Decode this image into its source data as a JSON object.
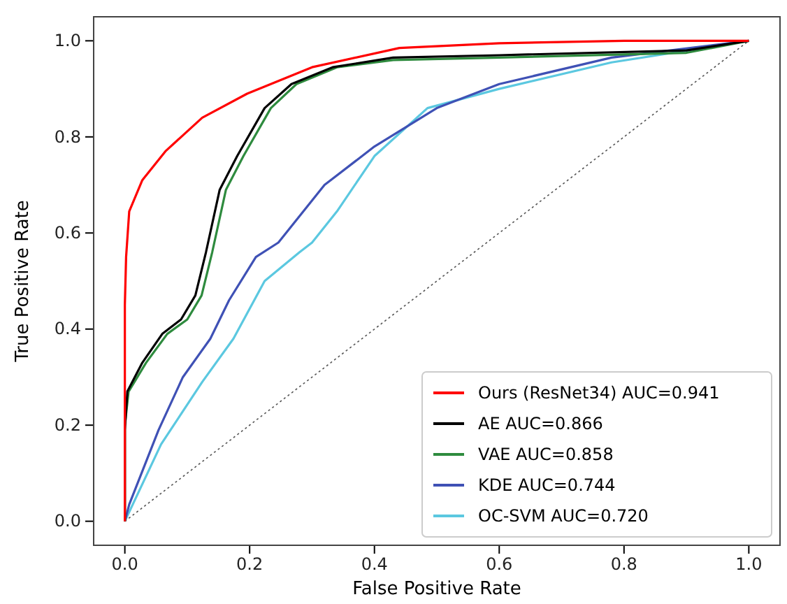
{
  "chart_data": {
    "type": "line",
    "xlabel": "False Positive Rate",
    "ylabel": "True Positive Rate",
    "xlim": [
      -0.05,
      1.05
    ],
    "ylim": [
      -0.05,
      1.05
    ],
    "xticks": [
      {
        "value": 0,
        "label": "0.0"
      },
      {
        "value": 0.2,
        "label": "0.2"
      },
      {
        "value": 0.4,
        "label": "0.4"
      },
      {
        "value": 0.6,
        "label": "0.6"
      },
      {
        "value": 0.8,
        "label": "0.8"
      },
      {
        "value": 1,
        "label": "1.0"
      }
    ],
    "yticks": [
      {
        "value": 0,
        "label": "0.0"
      },
      {
        "value": 0.2,
        "label": "0.2"
      },
      {
        "value": 0.4,
        "label": "0.4"
      },
      {
        "value": 0.6,
        "label": "0.6"
      },
      {
        "value": 0.8,
        "label": "0.8"
      },
      {
        "value": 1,
        "label": "1.0"
      }
    ],
    "grid": false,
    "legend": "bottom right",
    "marker": "none",
    "series": [
      {
        "name": "Ours (ResNet34) AUC=0.941",
        "color": "#ff0000",
        "x": [
          0,
          0,
          0.002,
          0.007,
          0.028,
          0.065,
          0.124,
          0.196,
          0.3,
          0.44,
          0.6,
          0.8,
          1
        ],
        "values": [
          0,
          0.45,
          0.55,
          0.645,
          0.71,
          0.77,
          0.84,
          0.89,
          0.945,
          0.985,
          0.995,
          1,
          1
        ]
      },
      {
        "name": "AE AUC=0.866",
        "color": "#000000",
        "x": [
          0,
          0,
          0.004,
          0.028,
          0.06,
          0.09,
          0.113,
          0.13,
          0.152,
          0.18,
          0.224,
          0.267,
          0.333,
          0.43,
          0.6,
          0.9,
          1
        ],
        "values": [
          0,
          0.19,
          0.27,
          0.33,
          0.39,
          0.42,
          0.47,
          0.56,
          0.69,
          0.76,
          0.86,
          0.91,
          0.945,
          0.965,
          0.97,
          0.98,
          1
        ]
      },
      {
        "name": "VAE AUC=0.858",
        "color": "#2e8b3e",
        "x": [
          0,
          0,
          0.006,
          0.034,
          0.068,
          0.1,
          0.123,
          0.14,
          0.162,
          0.19,
          0.234,
          0.275,
          0.34,
          0.43,
          0.6,
          0.9,
          1
        ],
        "values": [
          0,
          0.2,
          0.27,
          0.33,
          0.39,
          0.42,
          0.47,
          0.56,
          0.69,
          0.76,
          0.86,
          0.91,
          0.945,
          0.96,
          0.965,
          0.975,
          1
        ]
      },
      {
        "name": "KDE AUC=0.744",
        "color": "#3f51b5",
        "x": [
          0,
          0.007,
          0.054,
          0.093,
          0.137,
          0.167,
          0.21,
          0.246,
          0.32,
          0.4,
          0.5,
          0.6,
          0.78,
          1
        ],
        "values": [
          0,
          0.035,
          0.19,
          0.3,
          0.38,
          0.46,
          0.55,
          0.58,
          0.7,
          0.78,
          0.86,
          0.91,
          0.965,
          1
        ]
      },
      {
        "name": "OC-SVM AUC=0.720",
        "color": "#5bc8e0",
        "x": [
          0,
          0.058,
          0.124,
          0.174,
          0.224,
          0.28,
          0.3,
          0.34,
          0.4,
          0.485,
          0.6,
          0.78,
          1
        ],
        "values": [
          0,
          0.16,
          0.29,
          0.38,
          0.5,
          0.56,
          0.58,
          0.645,
          0.76,
          0.86,
          0.9,
          0.955,
          1
        ]
      },
      {
        "color": "#555555",
        "line_style": "dotted",
        "x": [
          0,
          1
        ],
        "values": [
          0,
          1
        ]
      }
    ]
  }
}
